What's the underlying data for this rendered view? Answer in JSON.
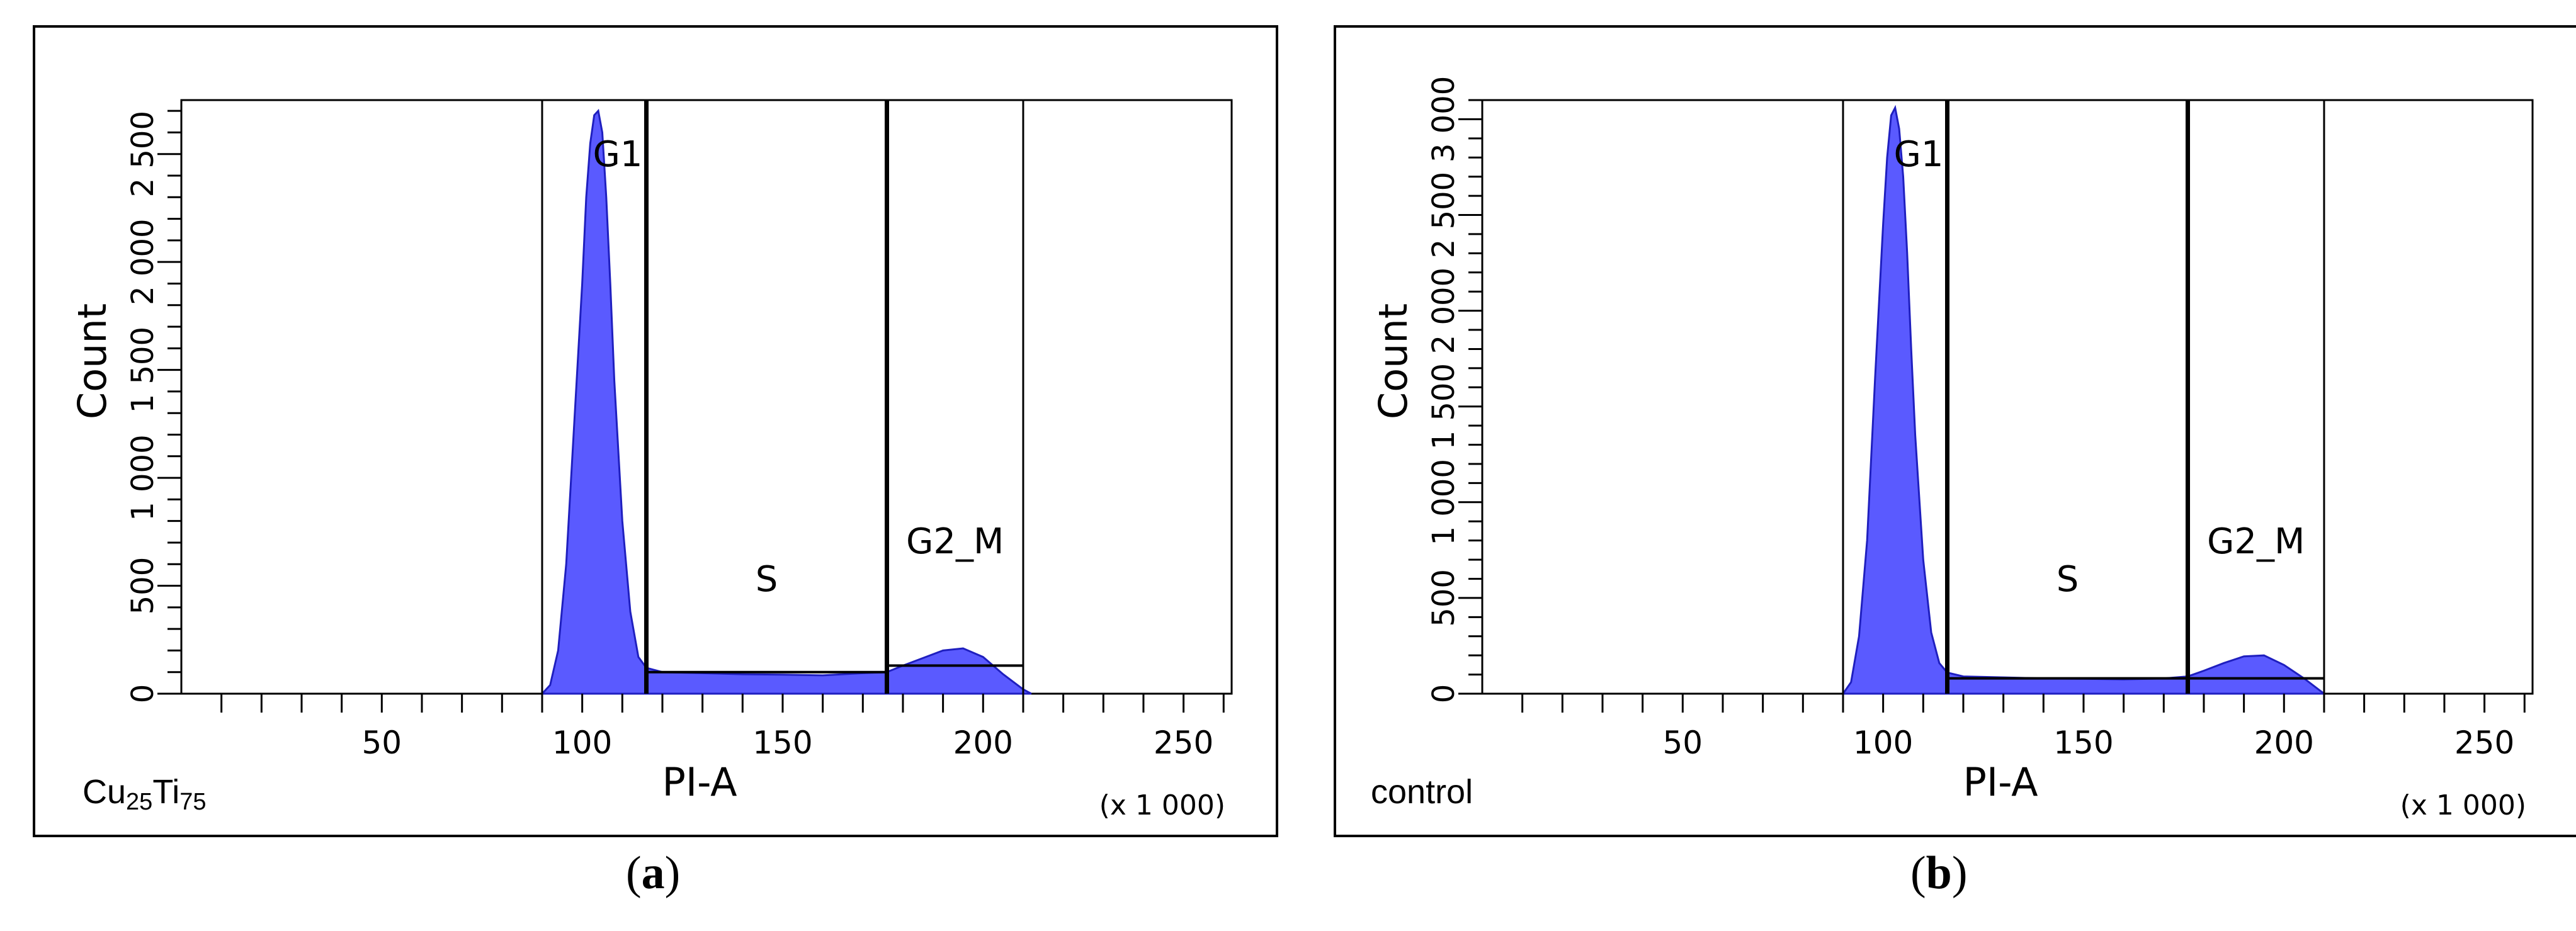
{
  "colors": {
    "histogram": "#5a5aff",
    "outline": "#1f1fbf",
    "frame": "#000000"
  },
  "panels": [
    {
      "caption_letter": "a",
      "caption_open": "(",
      "caption_close": ")",
      "sample_name_base": "Cu",
      "sample_name_sub1": "25",
      "sample_name_mid": "Ti",
      "sample_name_sub2": "75"
    },
    {
      "caption_letter": "b",
      "caption_open": "(",
      "caption_close": ")",
      "sample_name": "control"
    }
  ],
  "chart_data": [
    {
      "type": "area",
      "xlabel": "PI-A",
      "x_multiplier_label": "(x 1 000)",
      "ylabel": "Count",
      "xlim": [
        0,
        262
      ],
      "ylim": [
        0,
        2750
      ],
      "x_ticks": [
        50,
        100,
        150,
        200,
        250
      ],
      "x_tick_labels": [
        "50",
        "100",
        "150",
        "200",
        "250"
      ],
      "y_ticks": [
        0,
        500,
        1000,
        1500,
        2000,
        2500
      ],
      "y_tick_labels": [
        "0",
        "500",
        "1 000",
        "1 500",
        "2 000",
        "2 500"
      ],
      "x": [
        90,
        92,
        94,
        96,
        98,
        100,
        101,
        102,
        103,
        104,
        105,
        106,
        107,
        108,
        110,
        112,
        114,
        116,
        120,
        130,
        140,
        150,
        160,
        170,
        176,
        180,
        185,
        190,
        195,
        200,
        205,
        210,
        212
      ],
      "y": [
        0,
        40,
        200,
        600,
        1250,
        1900,
        2300,
        2550,
        2680,
        2700,
        2600,
        2300,
        1900,
        1450,
        800,
        380,
        170,
        120,
        100,
        95,
        90,
        88,
        85,
        95,
        100,
        130,
        165,
        200,
        210,
        170,
        90,
        20,
        0
      ],
      "gates": [
        {
          "name": "G1",
          "range": [
            90,
            116
          ],
          "level": 2750
        },
        {
          "name": "S",
          "range": [
            116,
            176
          ],
          "level": 100
        },
        {
          "name": "G2_M",
          "range": [
            176,
            210
          ],
          "level": 130
        }
      ]
    },
    {
      "type": "area",
      "xlabel": "PI-A",
      "x_multiplier_label": "(x 1 000)",
      "ylabel": "Count",
      "xlim": [
        0,
        262
      ],
      "ylim": [
        0,
        3100
      ],
      "x_ticks": [
        50,
        100,
        150,
        200,
        250
      ],
      "x_tick_labels": [
        "50",
        "100",
        "150",
        "200",
        "250"
      ],
      "y_ticks": [
        0,
        500,
        1000,
        1500,
        2000,
        2500,
        3000
      ],
      "y_tick_labels": [
        "0",
        "500",
        "1 000",
        "1 500",
        "2 000",
        "2 500",
        "3 000"
      ],
      "x": [
        90,
        92,
        94,
        96,
        98,
        100,
        101,
        102,
        103,
        104,
        105,
        106,
        107,
        108,
        110,
        112,
        114,
        116,
        120,
        130,
        140,
        150,
        160,
        170,
        176,
        180,
        185,
        190,
        195,
        200,
        205,
        210
      ],
      "y": [
        0,
        60,
        300,
        800,
        1650,
        2450,
        2800,
        3020,
        3060,
        2950,
        2700,
        2300,
        1800,
        1350,
        700,
        320,
        160,
        110,
        90,
        85,
        80,
        78,
        75,
        80,
        90,
        120,
        160,
        195,
        200,
        150,
        80,
        0
      ],
      "gates": [
        {
          "name": "G1",
          "range": [
            90,
            116
          ],
          "level": 3100
        },
        {
          "name": "S",
          "range": [
            116,
            176
          ],
          "level": 80
        },
        {
          "name": "G2_M",
          "range": [
            176,
            210
          ],
          "level": 80
        }
      ]
    }
  ]
}
